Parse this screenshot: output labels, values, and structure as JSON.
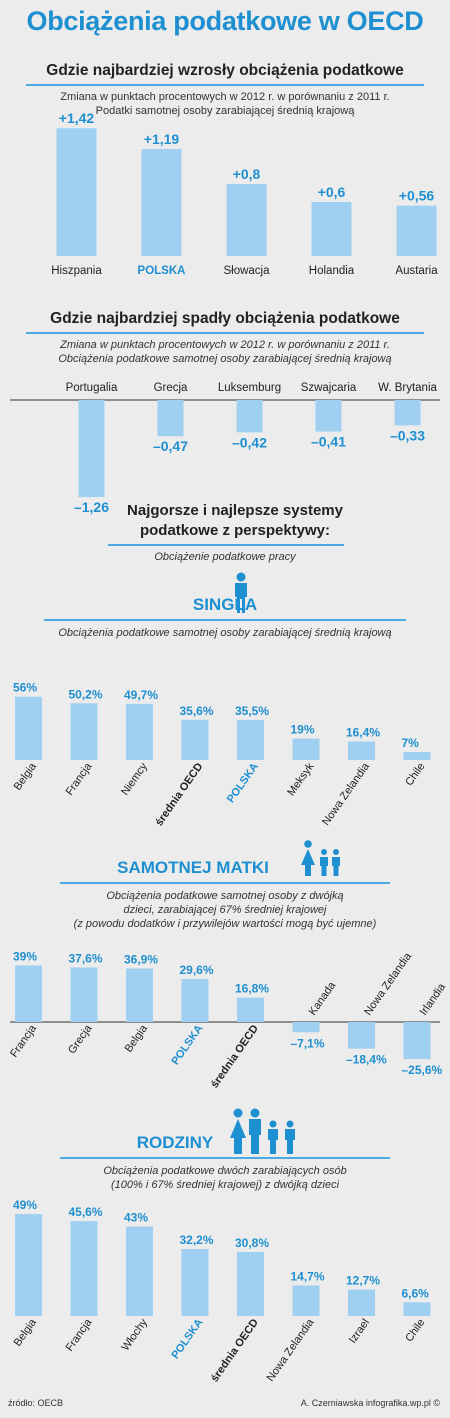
{
  "title": "Obciążenia podatkowe w OECD",
  "sections": {
    "increase": {
      "heading": "Gdzie najbardziej wzrosły obciążenia podatkowe",
      "sub1": "Zmiana w punktach procentowych w 2012 r. w porównaniu z 2011 r.",
      "sub2": "Podatki samotnej osoby zarabiającej średnią krajową"
    },
    "decrease": {
      "heading": "Gdzie najbardziej spadły obciążenia podatkowe",
      "sub1": "Zmiana w punktach procentowych w 2012 r. w porównaniu z 2011 r.",
      "sub2": "Obciążenia podatkowe samotnej osoby zarabiającej średnią krajową"
    }
  },
  "perspective": {
    "line1": "Najgorsze i najlepsze systemy",
    "line2": "podatkowe z perspektywy:",
    "sub": "Obciążenie podatkowe pracy"
  },
  "singla": {
    "heading": "SINGLA",
    "sub": "Obciążenia podatkowe samotnej osoby zarabiającej średnią krajową"
  },
  "matki": {
    "heading": "SAMOTNEJ MATKI",
    "sub1": "Obciążenia podatkowe samotnej osoby z dwójką",
    "sub2": "dzieci, zarabiającej 67% średniej krajowej",
    "sub3": "(z powodu dodatków i przywilejów wartości mogą być ujemne)"
  },
  "rodziny": {
    "heading": "RODZINY",
    "sub1": "Obciążenia podatkowe dwóch zarabiających osób",
    "sub2": "(100% i 67% średniej krajowej) z dwójką dzieci"
  },
  "footer": {
    "source": "źródło: OECB",
    "credits": "A. Czerniawska infografika.wp.pl ©"
  },
  "colors": {
    "bar": "#9fd0f2",
    "accent": "#1e8fd0",
    "text": "#222222"
  },
  "chart_data": [
    {
      "type": "bar",
      "categories": [
        "Hiszpania",
        "POLSKA",
        "Słowacja",
        "Holandia",
        "Austaria"
      ],
      "values": [
        1.42,
        1.19,
        0.8,
        0.6,
        0.56
      ],
      "value_labels": [
        "+1,42",
        "+1,19",
        "+0,8",
        "+0,6",
        "+0,56"
      ],
      "highlight": "POLSKA"
    },
    {
      "type": "bar",
      "categories": [
        "Portugalia",
        "Grecja",
        "Luksemburg",
        "Szwajcaria",
        "W. Brytania"
      ],
      "values": [
        -1.26,
        -0.47,
        -0.42,
        -0.41,
        -0.33
      ],
      "value_labels": [
        "–1,26",
        "–0,47",
        "–0,42",
        "–0,41",
        "–0,33"
      ]
    },
    {
      "type": "bar",
      "categories": [
        "Belgia",
        "Francja",
        "Niemcy",
        "średnia OECD",
        "POLSKA",
        "Meksyk",
        "Nowa Zelandia",
        "Chile"
      ],
      "values": [
        56,
        50.2,
        49.7,
        35.6,
        35.5,
        19,
        16.4,
        7
      ],
      "value_labels": [
        "56%",
        "50,2%",
        "49,7%",
        "35,6%",
        "35,5%",
        "19%",
        "16,4%",
        "7%"
      ],
      "highlight": "POLSKA",
      "bold": "średnia OECD"
    },
    {
      "type": "bar",
      "categories": [
        "Francja",
        "Grecja",
        "Belgia",
        "POLSKA",
        "średnia OECD",
        "Kanada",
        "Nowa Zelandia",
        "Irlandia"
      ],
      "values": [
        39,
        37.6,
        36.9,
        29.6,
        16.8,
        -7.1,
        -18.4,
        -25.6
      ],
      "value_labels": [
        "39%",
        "37,6%",
        "36,9%",
        "29,6%",
        "16,8%",
        "–7,1%",
        "–18,4%",
        "–25,6%"
      ],
      "highlight": "POLSKA",
      "bold": "średnia OECD"
    },
    {
      "type": "bar",
      "categories": [
        "Belgia",
        "Francja",
        "Włochy",
        "POLSKA",
        "średnia OECD",
        "Nowa Zelandia",
        "Izrael",
        "Chile"
      ],
      "values": [
        49,
        45.6,
        43,
        32.2,
        30.8,
        14.7,
        12.7,
        6.6
      ],
      "value_labels": [
        "49%",
        "45,6%",
        "43%",
        "32,2%",
        "30,8%",
        "14,7%",
        "12,7%",
        "6,6%"
      ],
      "highlight": "POLSKA",
      "bold": "średnia OECD"
    }
  ]
}
